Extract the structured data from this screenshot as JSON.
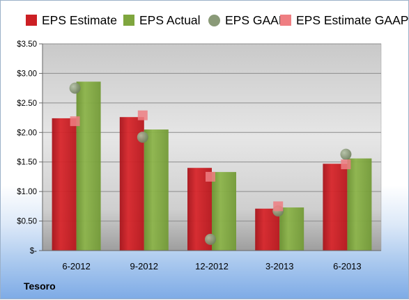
{
  "legend": {
    "items": [
      {
        "label": "EPS Estimate",
        "color": "#cc1f24",
        "shape": "rect"
      },
      {
        "label": "EPS Actual",
        "color": "#7fa63e",
        "shape": "rect"
      },
      {
        "label": "EPS GAAP",
        "color": "#8a9a78",
        "shape": "circle"
      },
      {
        "label": "EPS Estimate GAAP",
        "color": "#ef7e82",
        "shape": "rect"
      }
    ]
  },
  "company": "Tesoro",
  "chart_data": {
    "type": "bar",
    "title": "",
    "xlabel": "",
    "ylabel": "",
    "categories": [
      "6-2012",
      "9-2012",
      "12-2012",
      "3-2013",
      "6-2013"
    ],
    "ylim": [
      0,
      3.5
    ],
    "yticks": [
      0,
      0.5,
      1.0,
      1.5,
      2.0,
      2.5,
      3.0,
      3.5
    ],
    "ytick_labels": [
      "$-",
      "$0.50",
      "$1.00",
      "$1.50",
      "$2.00",
      "$2.50",
      "$3.00",
      "$3.50"
    ],
    "grid": true,
    "legend_position": "top",
    "series": [
      {
        "name": "EPS Estimate",
        "kind": "bar",
        "color": "#cc1f24",
        "values": [
          2.24,
          2.26,
          1.4,
          0.71,
          1.47
        ]
      },
      {
        "name": "EPS Actual",
        "kind": "bar",
        "color": "#7fa63e",
        "values": [
          2.86,
          2.05,
          1.33,
          0.73,
          1.56
        ]
      },
      {
        "name": "EPS GAAP",
        "kind": "marker-circle",
        "color": "#8a9a78",
        "values": [
          2.75,
          1.92,
          0.19,
          0.67,
          1.63
        ]
      },
      {
        "name": "EPS Estimate GAAP",
        "kind": "marker-square",
        "color": "#ef7e82",
        "values": [
          2.19,
          2.29,
          1.25,
          0.75,
          1.46
        ]
      }
    ]
  }
}
